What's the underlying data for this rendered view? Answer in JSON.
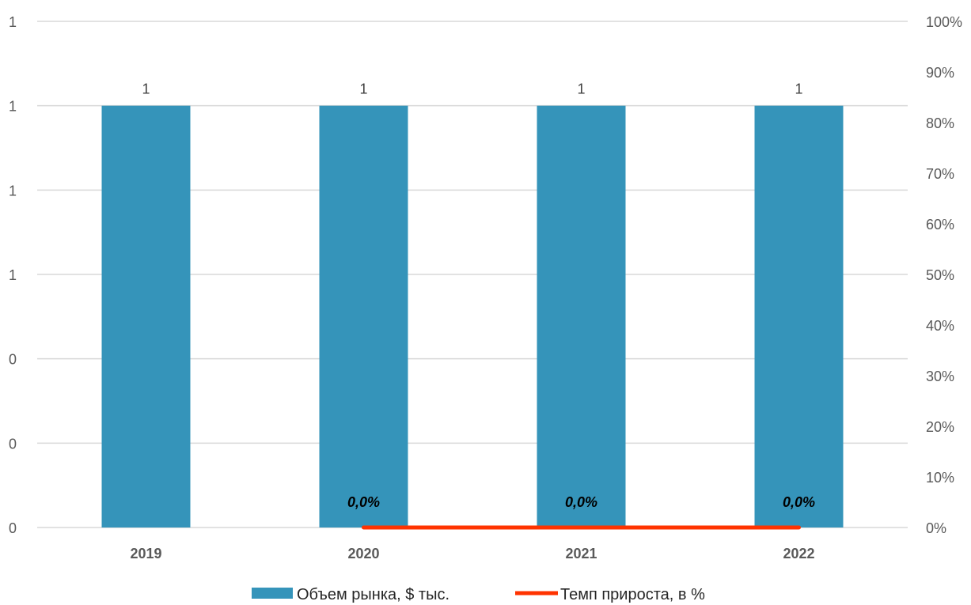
{
  "chart_data": {
    "type": "bar",
    "categories": [
      "2019",
      "2020",
      "2021",
      "2022"
    ],
    "left_axis": {
      "tick_labels": [
        "0",
        "0",
        "0",
        "1",
        "1",
        "1",
        "1"
      ],
      "ylim": [
        0,
        1.2
      ]
    },
    "right_axis": {
      "tick_labels": [
        "0%",
        "10%",
        "20%",
        "30%",
        "40%",
        "50%",
        "60%",
        "70%",
        "80%",
        "90%",
        "100%"
      ],
      "ylim": [
        0,
        1.0
      ]
    },
    "series": [
      {
        "name": "Объем рынка, $ тыс.",
        "type": "bar",
        "axis": "left",
        "color": "#3594BA",
        "values": [
          1,
          1,
          1,
          1
        ],
        "labels": [
          "1",
          "1",
          "1",
          "1"
        ]
      },
      {
        "name": "Темп прироста, в %",
        "type": "line",
        "axis": "right",
        "color": "#FF3300",
        "values": [
          null,
          0,
          0,
          0
        ],
        "labels": [
          "",
          "0,0%",
          "0,0%",
          "0,0%"
        ]
      }
    ],
    "grid": true,
    "legend_position": "bottom"
  }
}
